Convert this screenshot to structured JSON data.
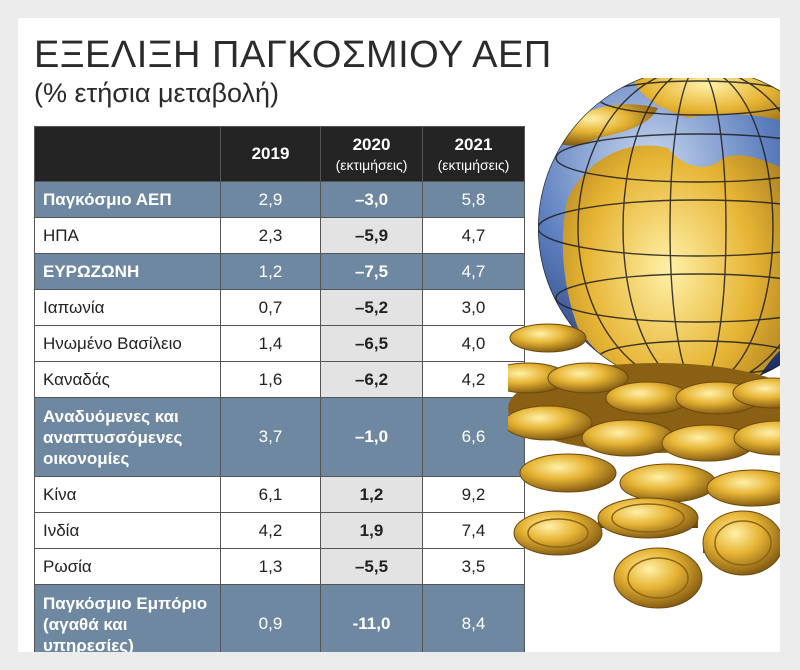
{
  "title": "ΕΞΕΛΙΞΗ ΠΑΓΚΟΣΜΙΟΥ ΑΕΠ",
  "subtitle": "(% ετήσια μεταβολή)",
  "colors": {
    "header": "#242424",
    "band": "#6e88a1",
    "shade": "#e3e3e3"
  },
  "chart_data": {
    "type": "table",
    "columns": [
      {
        "year": "2019",
        "note": ""
      },
      {
        "year": "2020",
        "note": "(εκτιμήσεις)"
      },
      {
        "year": "2021",
        "note": "(εκτιμήσεις)"
      }
    ],
    "rows": [
      {
        "label": "Παγκόσμιο ΑΕΠ",
        "values": [
          "2,9",
          "–3,0",
          "5,8"
        ],
        "highlight": true
      },
      {
        "label": "ΗΠΑ",
        "values": [
          "2,3",
          "–5,9",
          "4,7"
        ],
        "highlight": false
      },
      {
        "label": "ΕΥΡΩΖΩΝΗ",
        "values": [
          "1,2",
          "–7,5",
          "4,7"
        ],
        "highlight": true
      },
      {
        "label": "Ιαπωνία",
        "values": [
          "0,7",
          "–5,2",
          "3,0"
        ],
        "highlight": false
      },
      {
        "label": "Ηνωμένο Βασίλειο",
        "values": [
          "1,4",
          "–6,5",
          "4,0"
        ],
        "highlight": false
      },
      {
        "label": "Καναδάς",
        "values": [
          "1,6",
          "–6,2",
          "4,2"
        ],
        "highlight": false
      },
      {
        "label": "Αναδυόμενες και αναπτυσσόμενες οικονομίες",
        "values": [
          "3,7",
          "–1,0",
          "6,6"
        ],
        "highlight": true
      },
      {
        "label": "Κίνα",
        "values": [
          "6,1",
          "1,2",
          "9,2"
        ],
        "highlight": false
      },
      {
        "label": "Ινδία",
        "values": [
          "4,2",
          "1,9",
          "7,4"
        ],
        "highlight": false
      },
      {
        "label": "Ρωσία",
        "values": [
          "1,3",
          "–5,5",
          "3,5"
        ],
        "highlight": false
      },
      {
        "label": "Παγκόσμιο Εμπόριο (αγαθά και υπηρεσίες)",
        "values": [
          "0,9",
          "-11,0",
          "8,4"
        ],
        "highlight": true
      }
    ]
  }
}
